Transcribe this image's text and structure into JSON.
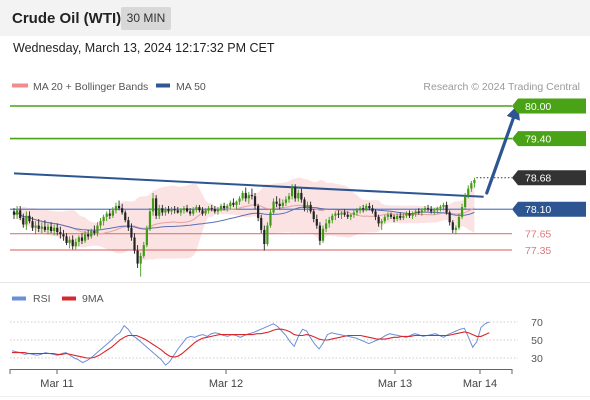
{
  "header": {
    "title": "Crude Oil (WTI)",
    "timeframe": "30 MIN"
  },
  "datetime": "Wednesday, March 13, 2024 12:17:32 PM CET",
  "credit": "Research © 2024 Trading Central",
  "colors": {
    "green": "#4aa216",
    "dark": "#333333",
    "blue": "#2c5591",
    "salmon": "#e0797a",
    "band": "#fbdada",
    "ma50": "#2f5696",
    "rsi": "#6d8fd8",
    "rsi_ma": "#d7282f"
  },
  "chart_data": [
    {
      "type": "candlestick",
      "legend": [
        {
          "label": "MA 20 + Bollinger Bands",
          "color": "#f08c8c"
        },
        {
          "label": "MA 50",
          "color": "#2f5696"
        }
      ],
      "legend_position": "top-left",
      "x_ticks": [
        "Mar 11",
        "Mar 12",
        "Mar 13",
        "Mar 14"
      ],
      "ylim": [
        76.6,
        80.2
      ],
      "levels": [
        {
          "value": 80.0,
          "label": "80.00",
          "style": "resistance"
        },
        {
          "value": 79.4,
          "label": "79.40",
          "style": "resistance"
        },
        {
          "value": 78.68,
          "label": "78.68",
          "style": "last"
        },
        {
          "value": 78.1,
          "label": "78.10",
          "style": "pivot"
        },
        {
          "value": 77.65,
          "label": "77.65",
          "style": "support"
        },
        {
          "value": 77.35,
          "label": "77.35",
          "style": "support"
        }
      ],
      "trend_line": [
        [
          0,
          78.76
        ],
        [
          152,
          78.33
        ]
      ],
      "projection": [
        [
          153,
          78.4
        ],
        [
          163,
          80.0
        ]
      ],
      "candles": [
        [
          78.06,
          78.12,
          77.92,
          78.0
        ],
        [
          78.0,
          78.16,
          77.92,
          78.08
        ],
        [
          78.08,
          78.16,
          77.9,
          77.94
        ],
        [
          77.94,
          78.02,
          77.76,
          77.82
        ],
        [
          77.82,
          78.06,
          77.72,
          77.98
        ],
        [
          77.98,
          78.06,
          77.84,
          77.88
        ],
        [
          77.88,
          77.96,
          77.7,
          77.76
        ],
        [
          77.76,
          77.88,
          77.64,
          77.8
        ],
        [
          77.8,
          77.92,
          77.68,
          77.74
        ],
        [
          77.74,
          77.86,
          77.66,
          77.78
        ],
        [
          77.78,
          77.9,
          77.68,
          77.72
        ],
        [
          77.72,
          77.84,
          77.64,
          77.78
        ],
        [
          77.78,
          77.86,
          77.66,
          77.7
        ],
        [
          77.7,
          77.82,
          77.62,
          77.76
        ],
        [
          77.76,
          77.84,
          77.62,
          77.68
        ],
        [
          77.68,
          77.78,
          77.56,
          77.64
        ],
        [
          77.64,
          77.72,
          77.52,
          77.6
        ],
        [
          77.6,
          77.66,
          77.44,
          77.48
        ],
        [
          77.48,
          77.6,
          77.38,
          77.54
        ],
        [
          77.54,
          77.62,
          77.36,
          77.42
        ],
        [
          77.42,
          77.56,
          77.36,
          77.5
        ],
        [
          77.5,
          77.62,
          77.42,
          77.58
        ],
        [
          77.58,
          77.66,
          77.46,
          77.52
        ],
        [
          77.52,
          77.7,
          77.48,
          77.64
        ],
        [
          77.64,
          77.72,
          77.54,
          77.6
        ],
        [
          77.6,
          77.74,
          77.56,
          77.7
        ],
        [
          77.7,
          77.8,
          77.62,
          77.66
        ],
        [
          77.66,
          77.86,
          77.6,
          77.8
        ],
        [
          77.8,
          77.94,
          77.74,
          77.88
        ],
        [
          77.88,
          78.0,
          77.8,
          77.96
        ],
        [
          77.96,
          78.06,
          77.88,
          78.02
        ],
        [
          78.02,
          78.1,
          77.92,
          77.98
        ],
        [
          77.98,
          78.14,
          77.94,
          78.08
        ],
        [
          78.08,
          78.22,
          78.02,
          78.16
        ],
        [
          78.16,
          78.26,
          78.08,
          78.12
        ],
        [
          78.12,
          78.2,
          78.0,
          78.04
        ],
        [
          78.04,
          78.08,
          77.86,
          77.9
        ],
        [
          77.9,
          77.96,
          77.7,
          77.76
        ],
        [
          77.76,
          77.84,
          77.52,
          77.58
        ],
        [
          77.58,
          77.66,
          77.28,
          77.34
        ],
        [
          77.34,
          77.44,
          77.02,
          77.1
        ],
        [
          77.1,
          77.3,
          76.86,
          77.24
        ],
        [
          77.24,
          77.5,
          77.2,
          77.44
        ],
        [
          77.44,
          77.8,
          77.4,
          77.74
        ],
        [
          77.74,
          78.12,
          77.7,
          78.06
        ],
        [
          78.06,
          78.4,
          77.98,
          78.3
        ],
        [
          78.3,
          78.36,
          77.92,
          77.98
        ],
        [
          77.98,
          78.18,
          77.92,
          78.12
        ],
        [
          78.12,
          78.18,
          77.98,
          78.04
        ],
        [
          78.04,
          78.14,
          77.98,
          78.1
        ],
        [
          78.1,
          78.16,
          78.02,
          78.06
        ],
        [
          78.06,
          78.14,
          78.0,
          78.1
        ],
        [
          78.1,
          78.16,
          78.02,
          78.08
        ],
        [
          78.08,
          78.14,
          78.02,
          78.04
        ],
        [
          78.04,
          78.12,
          77.98,
          78.08
        ],
        [
          78.08,
          78.16,
          78.02,
          78.12
        ],
        [
          78.12,
          78.18,
          78.04,
          78.06
        ],
        [
          78.06,
          78.12,
          77.98,
          78.02
        ],
        [
          78.02,
          78.14,
          77.98,
          78.1
        ],
        [
          78.1,
          78.18,
          78.04,
          78.14
        ],
        [
          78.14,
          78.18,
          78.04,
          78.08
        ],
        [
          78.08,
          78.14,
          77.98,
          78.02
        ],
        [
          78.02,
          78.12,
          77.98,
          78.08
        ],
        [
          78.08,
          78.16,
          78.02,
          78.12
        ],
        [
          78.12,
          78.18,
          78.06,
          78.1
        ],
        [
          78.1,
          78.16,
          78.02,
          78.06
        ],
        [
          78.06,
          78.14,
          78.0,
          78.1
        ],
        [
          78.1,
          78.2,
          78.06,
          78.16
        ],
        [
          78.16,
          78.22,
          78.08,
          78.12
        ],
        [
          78.12,
          78.2,
          78.06,
          78.16
        ],
        [
          78.16,
          78.26,
          78.1,
          78.22
        ],
        [
          78.22,
          78.3,
          78.14,
          78.18
        ],
        [
          78.18,
          78.26,
          78.1,
          78.24
        ],
        [
          78.24,
          78.34,
          78.18,
          78.3
        ],
        [
          78.3,
          78.44,
          78.26,
          78.4
        ],
        [
          78.4,
          78.5,
          78.24,
          78.3
        ],
        [
          78.3,
          78.42,
          78.2,
          78.36
        ],
        [
          78.36,
          78.48,
          78.28,
          78.34
        ],
        [
          78.34,
          78.4,
          78.1,
          78.16
        ],
        [
          78.16,
          78.2,
          77.88,
          77.94
        ],
        [
          77.94,
          78.0,
          77.66,
          77.72
        ],
        [
          77.72,
          77.8,
          77.34,
          77.46
        ],
        [
          77.46,
          77.86,
          77.42,
          77.8
        ],
        [
          77.8,
          78.1,
          77.76,
          78.04
        ],
        [
          78.04,
          78.3,
          78.0,
          78.24
        ],
        [
          78.24,
          78.34,
          78.14,
          78.2
        ],
        [
          78.2,
          78.3,
          78.1,
          78.16
        ],
        [
          78.16,
          78.28,
          78.12,
          78.22
        ],
        [
          78.22,
          78.34,
          78.16,
          78.28
        ],
        [
          78.28,
          78.4,
          78.22,
          78.34
        ],
        [
          78.34,
          78.56,
          78.28,
          78.5
        ],
        [
          78.5,
          78.56,
          78.24,
          78.3
        ],
        [
          78.3,
          78.46,
          78.24,
          78.4
        ],
        [
          78.4,
          78.48,
          78.22,
          78.28
        ],
        [
          78.28,
          78.32,
          78.06,
          78.12
        ],
        [
          78.12,
          78.24,
          78.04,
          78.18
        ],
        [
          78.18,
          78.24,
          78.02,
          78.06
        ],
        [
          78.06,
          78.1,
          77.86,
          77.92
        ],
        [
          77.92,
          78.0,
          77.74,
          77.8
        ],
        [
          77.8,
          77.86,
          77.44,
          77.52
        ],
        [
          77.52,
          77.8,
          77.48,
          77.74
        ],
        [
          77.74,
          77.92,
          77.68,
          77.84
        ],
        [
          77.84,
          77.96,
          77.76,
          77.9
        ],
        [
          77.9,
          78.02,
          77.84,
          77.98
        ],
        [
          77.98,
          78.06,
          77.9,
          78.02
        ],
        [
          78.02,
          78.08,
          77.94,
          78.0
        ],
        [
          78.0,
          78.06,
          77.92,
          78.04
        ],
        [
          78.04,
          78.1,
          77.96,
          78.0
        ],
        [
          78.0,
          78.06,
          77.92,
          77.96
        ],
        [
          77.96,
          78.02,
          77.9,
          78.0
        ],
        [
          78.0,
          78.08,
          77.94,
          78.04
        ],
        [
          78.04,
          78.12,
          77.98,
          78.08
        ],
        [
          78.08,
          78.16,
          78.02,
          78.12
        ],
        [
          78.12,
          78.18,
          78.04,
          78.1
        ],
        [
          78.1,
          78.2,
          78.06,
          78.16
        ],
        [
          78.16,
          78.22,
          78.08,
          78.12
        ],
        [
          78.12,
          78.18,
          78.02,
          78.06
        ],
        [
          78.06,
          78.1,
          77.9,
          77.96
        ],
        [
          77.96,
          78.0,
          77.78,
          77.84
        ],
        [
          77.84,
          77.92,
          77.72,
          77.88
        ],
        [
          77.88,
          78.0,
          77.84,
          77.96
        ],
        [
          77.96,
          78.04,
          77.9,
          78.0
        ],
        [
          78.0,
          78.04,
          77.92,
          77.96
        ],
        [
          77.96,
          78.0,
          77.86,
          77.92
        ],
        [
          77.92,
          78.02,
          77.88,
          77.98
        ],
        [
          77.98,
          78.04,
          77.9,
          77.94
        ],
        [
          77.94,
          78.02,
          77.9,
          77.98
        ],
        [
          77.98,
          78.06,
          77.94,
          78.02
        ],
        [
          78.02,
          78.08,
          77.94,
          77.98
        ],
        [
          77.98,
          78.06,
          77.92,
          78.02
        ],
        [
          78.02,
          78.1,
          77.96,
          78.06
        ],
        [
          78.06,
          78.12,
          78.0,
          78.04
        ],
        [
          78.04,
          78.12,
          77.98,
          78.08
        ],
        [
          78.08,
          78.16,
          78.04,
          78.12
        ],
        [
          78.12,
          78.18,
          78.06,
          78.1
        ],
        [
          78.1,
          78.16,
          78.02,
          78.06
        ],
        [
          78.06,
          78.12,
          78.0,
          78.08
        ],
        [
          78.08,
          78.14,
          78.02,
          78.12
        ],
        [
          78.12,
          78.18,
          78.06,
          78.14
        ],
        [
          78.14,
          78.22,
          78.08,
          78.18
        ],
        [
          78.18,
          78.24,
          78.0,
          78.04
        ],
        [
          78.04,
          78.08,
          77.8,
          77.86
        ],
        [
          77.86,
          77.9,
          77.66,
          77.72
        ],
        [
          77.72,
          77.8,
          77.64,
          77.76
        ],
        [
          77.76,
          78.02,
          77.72,
          77.96
        ],
        [
          77.96,
          78.2,
          77.92,
          78.14
        ],
        [
          78.14,
          78.4,
          78.1,
          78.34
        ],
        [
          78.34,
          78.54,
          78.3,
          78.48
        ],
        [
          78.48,
          78.62,
          78.42,
          78.58
        ],
        [
          78.58,
          78.68,
          78.5,
          78.64
        ]
      ]
    },
    {
      "type": "line",
      "legend": [
        {
          "label": "RSI",
          "color": "#6d8fd8"
        },
        {
          "label": "9MA",
          "color": "#d7282f"
        }
      ],
      "y_ticks": [
        70,
        50,
        30
      ],
      "ylim": [
        20,
        78
      ],
      "rsi": [
        38,
        37,
        36,
        34,
        35,
        34,
        33,
        34,
        36,
        35,
        34,
        33,
        35,
        36,
        33,
        30,
        28,
        25,
        27,
        30,
        34,
        38,
        42,
        46,
        50,
        55,
        58,
        66,
        62,
        55,
        52,
        48,
        44,
        40,
        36,
        32,
        28,
        22,
        26,
        33,
        40,
        46,
        52,
        54,
        53,
        55,
        56,
        54,
        57,
        58,
        57,
        55,
        54,
        56,
        55,
        53,
        55,
        57,
        58,
        60,
        62,
        64,
        66,
        68,
        65,
        60,
        55,
        48,
        43,
        54,
        62,
        60,
        52,
        45,
        40,
        47,
        56,
        58,
        57,
        56,
        55,
        54,
        53,
        52,
        50,
        48,
        46,
        48,
        50,
        52,
        55,
        57,
        56,
        55,
        54,
        53,
        55,
        57,
        56,
        54,
        55,
        56,
        57,
        55,
        53,
        56,
        58,
        60,
        62,
        63,
        53,
        42,
        48,
        64,
        68,
        70
      ],
      "rsi_ma": [
        36,
        36,
        36,
        36,
        35,
        35,
        35,
        35,
        35,
        35,
        35,
        34,
        34,
        35,
        34,
        33,
        32,
        31,
        30,
        30,
        31,
        33,
        36,
        39,
        42,
        46,
        50,
        53,
        55,
        55,
        55,
        53,
        51,
        48,
        45,
        42,
        39,
        35,
        32,
        31,
        32,
        35,
        39,
        43,
        47,
        50,
        52,
        53,
        54,
        55,
        56,
        56,
        56,
        56,
        56,
        56,
        56,
        56,
        56,
        57,
        57,
        58,
        59,
        61,
        62,
        62,
        61,
        59,
        56,
        55,
        55,
        56,
        55,
        53,
        51,
        50,
        50,
        51,
        52,
        53,
        54,
        55,
        55,
        55,
        55,
        54,
        53,
        52,
        51,
        51,
        51,
        52,
        53,
        53,
        54,
        54,
        54,
        55,
        55,
        55,
        55,
        55,
        55,
        55,
        55,
        55,
        56,
        57,
        58,
        59,
        58,
        56,
        54,
        54,
        56,
        58
      ]
    }
  ]
}
